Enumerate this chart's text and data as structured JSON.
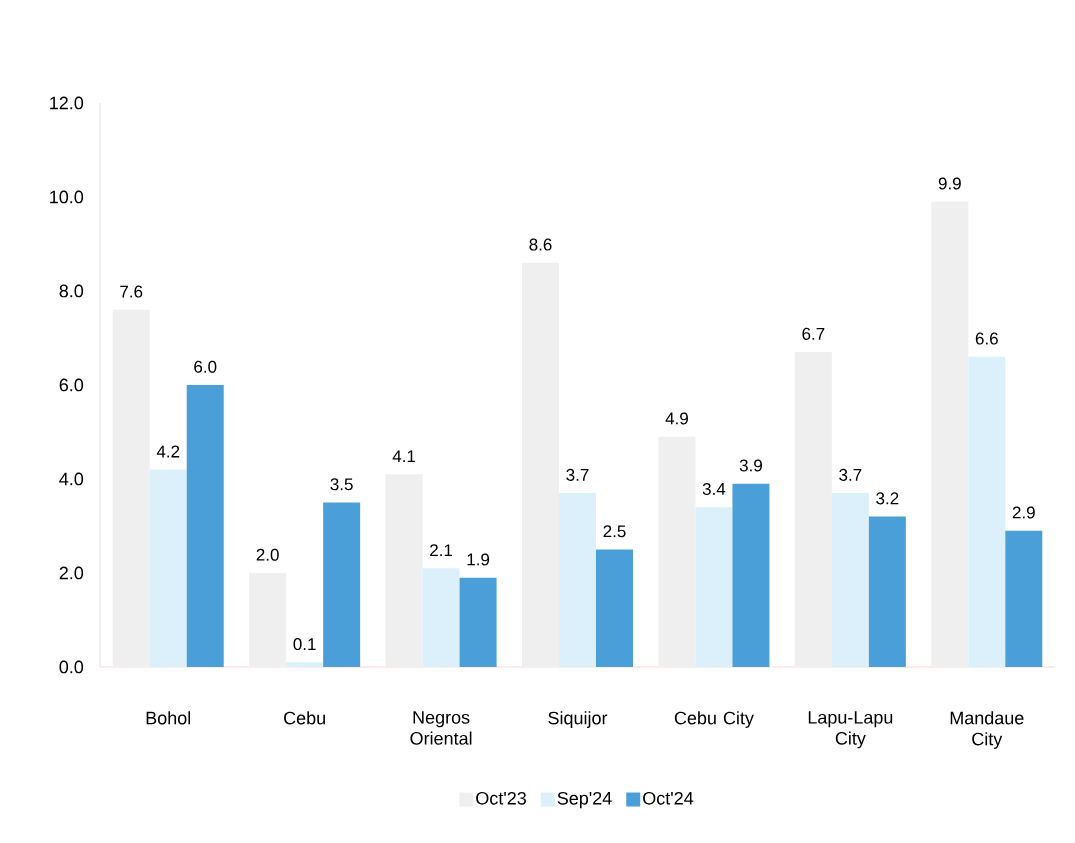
{
  "chart_data": {
    "type": "bar",
    "categories": [
      "Bohol",
      "Cebu",
      "Negros Oriental",
      "Siquijor",
      "Cebu City",
      "Lapu-Lapu City",
      "Mandaue City"
    ],
    "series": [
      {
        "name": "Oct'23",
        "color": "#efefef",
        "values": [
          7.6,
          2.0,
          4.1,
          8.6,
          4.9,
          6.7,
          9.9
        ],
        "value_labels": [
          "7.6",
          "2.0",
          "4.1",
          "8.6",
          "4.9",
          "6.7",
          "9.9"
        ]
      },
      {
        "name": "Sep'24",
        "color": "#dcf0fb",
        "values": [
          4.2,
          0.1,
          2.1,
          3.7,
          3.4,
          3.7,
          6.6
        ],
        "value_labels": [
          "4.2",
          "0.1",
          "2.1",
          "3.7",
          "3.4",
          "3.7",
          "6.6"
        ]
      },
      {
        "name": "Oct'24",
        "color": "#4a9fd8",
        "values": [
          6.0,
          3.5,
          1.9,
          2.5,
          3.9,
          3.2,
          2.9
        ],
        "value_labels": [
          "6.0",
          "3.5",
          "1.9",
          "2.5",
          "3.9",
          "3.2",
          "2.9"
        ]
      }
    ],
    "ylim": [
      0,
      12
    ],
    "yticks": [
      {
        "value": 0,
        "label": "0.0"
      },
      {
        "value": 2,
        "label": "2.0"
      },
      {
        "value": 4,
        "label": "4.0"
      },
      {
        "value": 6,
        "label": "6.0"
      },
      {
        "value": 8,
        "label": "8.0"
      },
      {
        "value": 10,
        "label": "10.0"
      },
      {
        "value": 12,
        "label": "12.0"
      }
    ],
    "grid": false,
    "legend": "bottom"
  }
}
